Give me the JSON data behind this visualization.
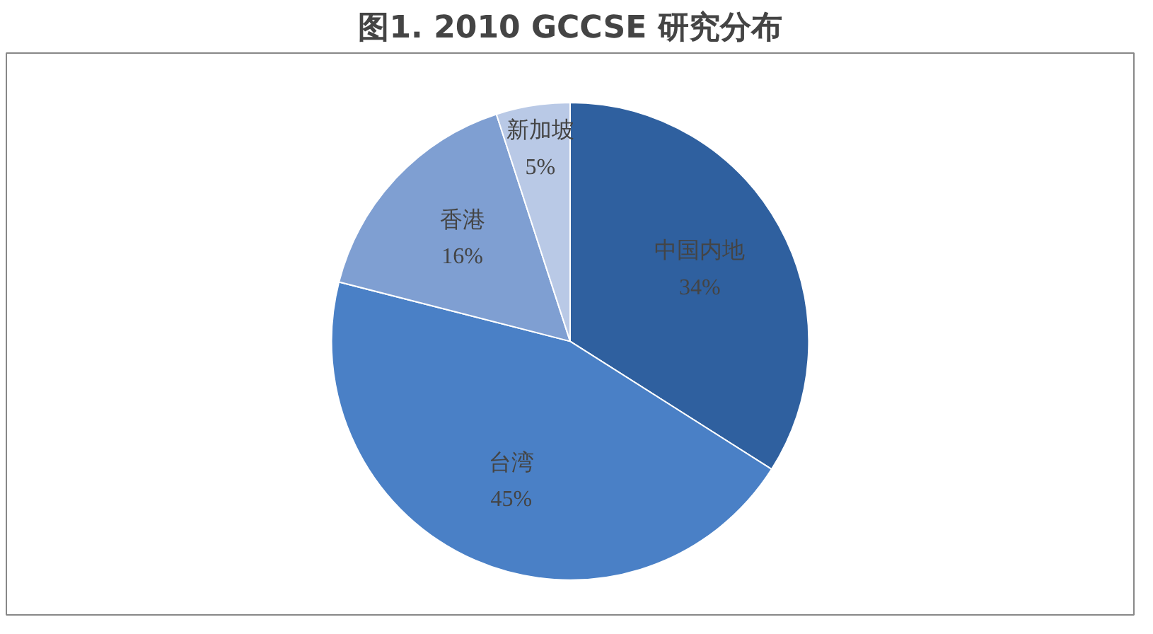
{
  "chart_data": {
    "type": "pie",
    "title": "图1. 2010 GCCSE 研究分布",
    "categories": [
      "中国内地",
      "台湾",
      "香港",
      "新加坡"
    ],
    "values": [
      34,
      45,
      16,
      5
    ],
    "colors": [
      "#2f609f",
      "#4a80c6",
      "#7f9fd2",
      "#b9c9e6"
    ],
    "value_labels": [
      "34%",
      "45%",
      "16%",
      "5%"
    ]
  }
}
